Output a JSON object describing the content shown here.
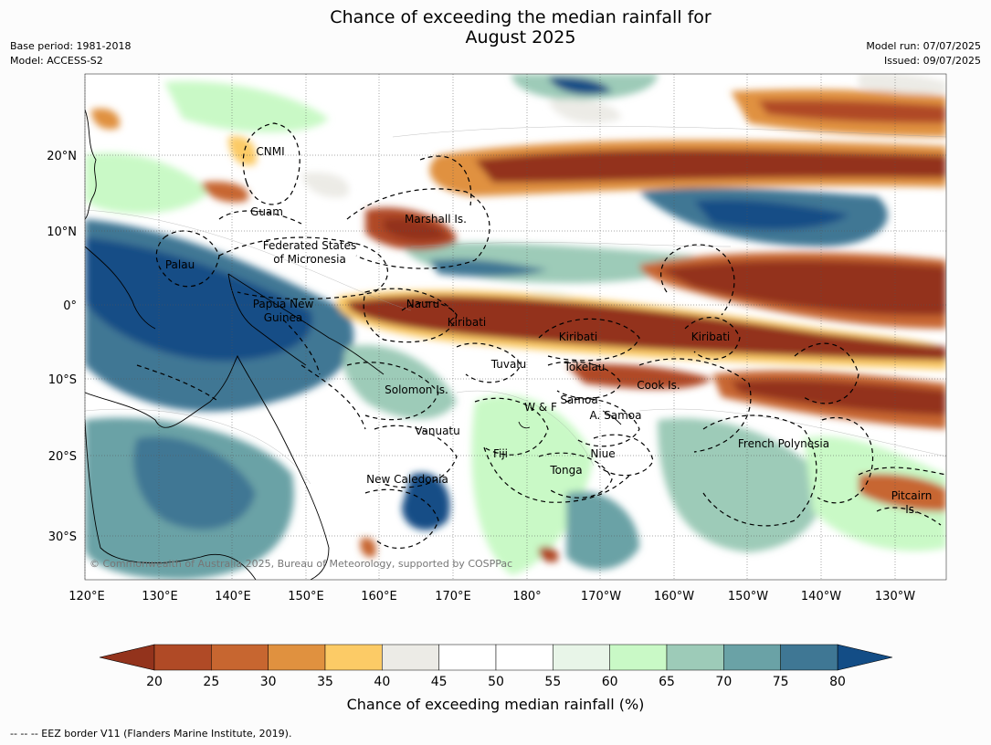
{
  "title_line1": "Chance of exceeding the median rainfall for",
  "title_line2": "August 2025",
  "meta_left": [
    "Base period: 1981-2018",
    "Model: ACCESS-S2"
  ],
  "meta_right": [
    "Model run: 07/07/2025",
    "Issued: 09/07/2025"
  ],
  "lat_labels": [
    "20°N",
    "10°N",
    "0°",
    "10°S",
    "20°S",
    "30°S"
  ],
  "lon_labels": [
    "120°E",
    "130°E",
    "140°E",
    "150°E",
    "160°E",
    "170°E",
    "180°",
    "170°W",
    "160°W",
    "150°W",
    "140°W",
    "130°W"
  ],
  "regions": [
    "CNMI",
    "Guam",
    "Marshall Is.",
    "Federated States",
    "of Micronesia",
    "Palau",
    "Nauru",
    "Papua New",
    "Guinea",
    "Kiribati",
    "Kiribati",
    "Kiribati",
    "Tuvalu",
    "Tokelau",
    "Solomon Is.",
    "Cook Is.",
    "Samoa",
    "W & F",
    "A. Samoa",
    "Vanuatu",
    "Fiji",
    "Niue",
    "French Polynesia",
    "Tonga",
    "New Caledonia",
    "Pitcairn",
    "Is."
  ],
  "copyright": "© Commonwealth of Australia 2025, Bureau of Meteorology, supported by COSPPac",
  "colorbar": {
    "ticks": [
      "20",
      "25",
      "30",
      "35",
      "40",
      "45",
      "50",
      "55",
      "60",
      "65",
      "70",
      "75",
      "80"
    ],
    "colors": [
      "#93331c",
      "#b04a26",
      "#c76630",
      "#e0913f",
      "#fccb66",
      "#ecebe6",
      "#ffffff",
      "#ffffff",
      "#e8f5e8",
      "#c9f9c6",
      "#9dcbb8",
      "#6aa2a6",
      "#3f7794",
      "#134d86"
    ],
    "label": "Chance of exceeding median rainfall (%)"
  },
  "footer": "--  --  -- EEZ border V11 (Flanders Marine Institute, 2019)."
}
